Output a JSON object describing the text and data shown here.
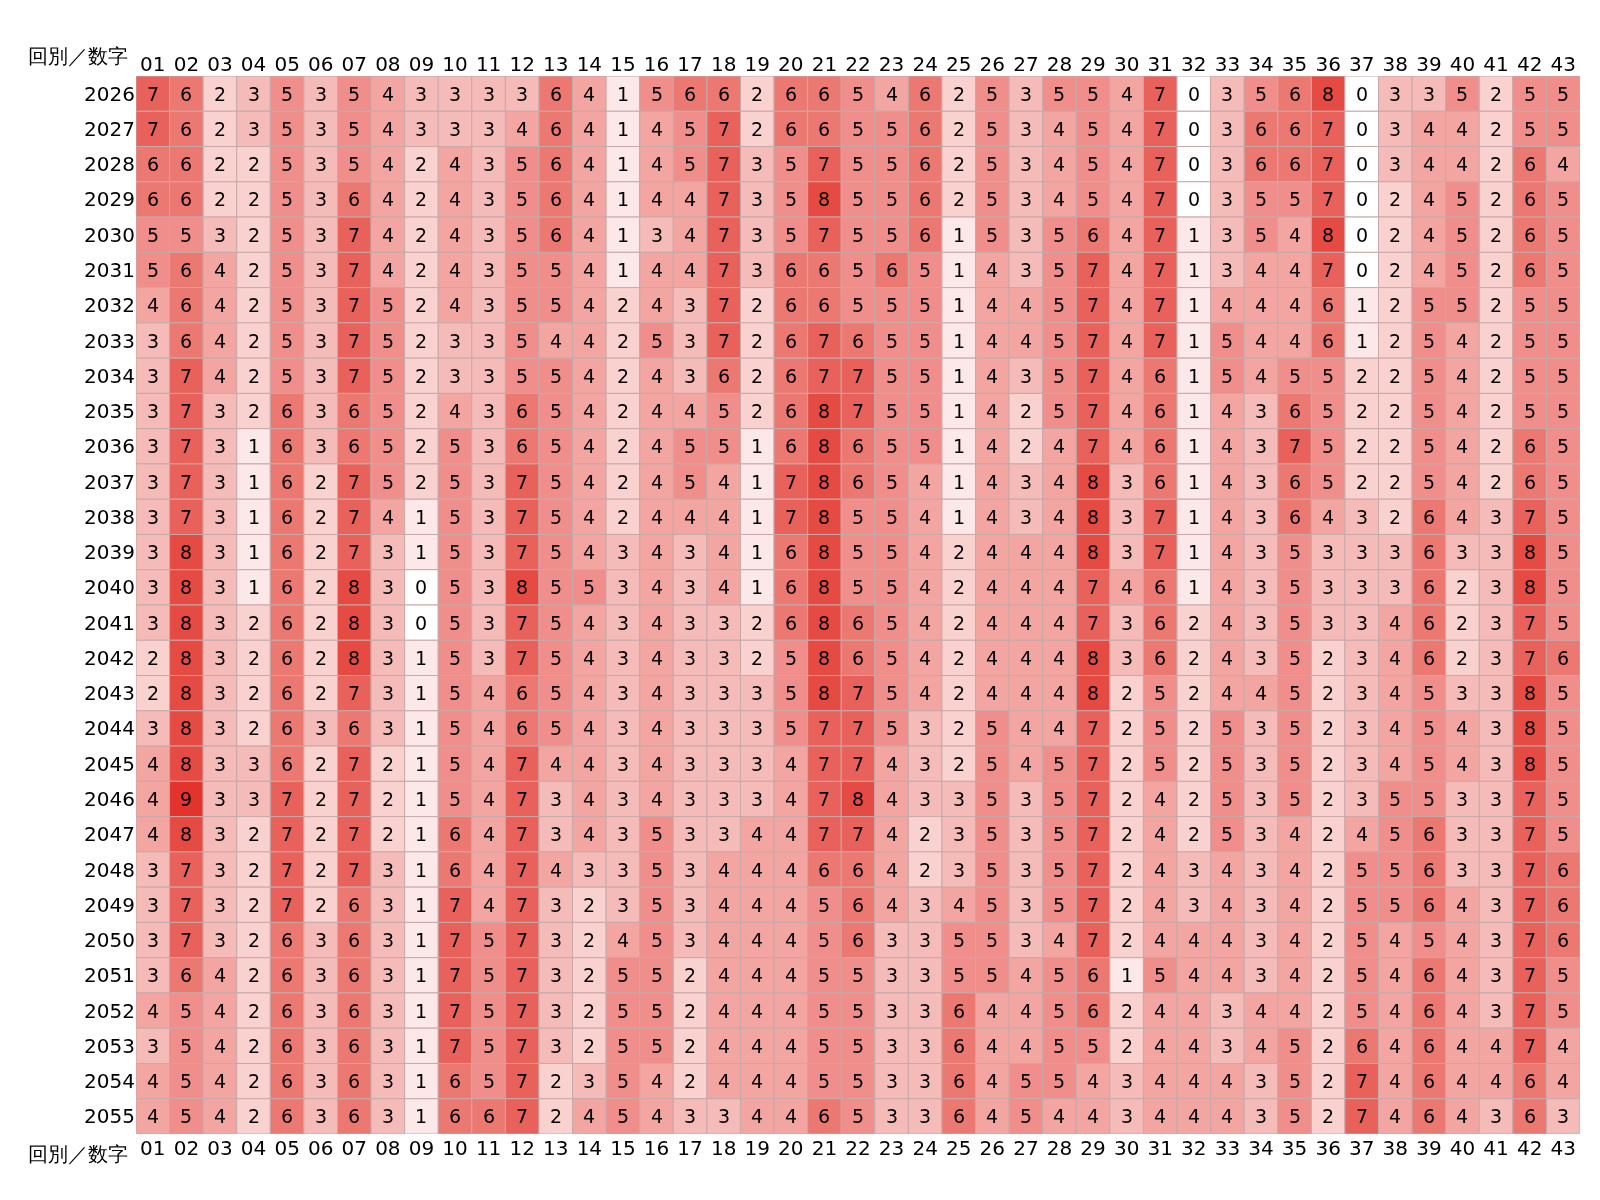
{
  "chart_data": {
    "type": "heatmap",
    "xlabel": "回別／数字",
    "data_labels": true,
    "categories": [
      "01",
      "02",
      "03",
      "04",
      "05",
      "06",
      "07",
      "08",
      "09",
      "10",
      "11",
      "12",
      "13",
      "14",
      "15",
      "16",
      "17",
      "18",
      "19",
      "20",
      "21",
      "22",
      "23",
      "24",
      "25",
      "26",
      "27",
      "28",
      "29",
      "30",
      "31",
      "32",
      "33",
      "34",
      "35",
      "36",
      "37",
      "38",
      "39",
      "40",
      "41",
      "42",
      "43"
    ],
    "y_categories": [
      "2026",
      "2027",
      "2028",
      "2029",
      "2030",
      "2031",
      "2032",
      "2033",
      "2034",
      "2035",
      "2036",
      "2037",
      "2038",
      "2039",
      "2040",
      "2041",
      "2042",
      "2043",
      "2044",
      "2045",
      "2046",
      "2047",
      "2048",
      "2049",
      "2050",
      "2051",
      "2052",
      "2053",
      "2054",
      "2055"
    ],
    "cells": [
      [
        7,
        6,
        2,
        3,
        5,
        3,
        5,
        4,
        3,
        3,
        3,
        3,
        6,
        4,
        1,
        5,
        6,
        6,
        2,
        6,
        6,
        5,
        4,
        6,
        2,
        5,
        3,
        5,
        5,
        4,
        7,
        0,
        3,
        5,
        6,
        8,
        0,
        3,
        3,
        5,
        2,
        5,
        5
      ],
      [
        7,
        6,
        2,
        3,
        5,
        3,
        5,
        4,
        3,
        3,
        3,
        4,
        6,
        4,
        1,
        4,
        5,
        7,
        2,
        6,
        6,
        5,
        5,
        6,
        2,
        5,
        3,
        4,
        5,
        4,
        7,
        0,
        3,
        6,
        6,
        7,
        0,
        3,
        4,
        4,
        2,
        5,
        5
      ],
      [
        6,
        6,
        2,
        2,
        5,
        3,
        5,
        4,
        2,
        4,
        3,
        5,
        6,
        4,
        1,
        4,
        5,
        7,
        3,
        5,
        7,
        5,
        5,
        6,
        2,
        5,
        3,
        4,
        5,
        4,
        7,
        0,
        3,
        6,
        6,
        7,
        0,
        3,
        4,
        4,
        2,
        6,
        4
      ],
      [
        6,
        6,
        2,
        2,
        5,
        3,
        6,
        4,
        2,
        4,
        3,
        5,
        6,
        4,
        1,
        4,
        4,
        7,
        3,
        5,
        8,
        5,
        5,
        6,
        2,
        5,
        3,
        4,
        5,
        4,
        7,
        0,
        3,
        5,
        5,
        7,
        0,
        2,
        4,
        5,
        2,
        6,
        5
      ],
      [
        5,
        5,
        3,
        2,
        5,
        3,
        7,
        4,
        2,
        4,
        3,
        5,
        6,
        4,
        1,
        3,
        4,
        7,
        3,
        5,
        7,
        5,
        5,
        6,
        1,
        5,
        3,
        5,
        6,
        4,
        7,
        1,
        3,
        5,
        4,
        8,
        0,
        2,
        4,
        5,
        2,
        6,
        5
      ],
      [
        5,
        6,
        4,
        2,
        5,
        3,
        7,
        4,
        2,
        4,
        3,
        5,
        5,
        4,
        1,
        4,
        4,
        7,
        3,
        6,
        6,
        5,
        6,
        5,
        1,
        4,
        3,
        5,
        7,
        4,
        7,
        1,
        3,
        4,
        4,
        7,
        0,
        2,
        4,
        5,
        2,
        6,
        5
      ],
      [
        4,
        6,
        4,
        2,
        5,
        3,
        7,
        5,
        2,
        4,
        3,
        5,
        5,
        4,
        2,
        4,
        3,
        7,
        2,
        6,
        6,
        5,
        5,
        5,
        1,
        4,
        4,
        5,
        7,
        4,
        7,
        1,
        4,
        4,
        4,
        6,
        1,
        2,
        5,
        5,
        2,
        5,
        5
      ],
      [
        3,
        6,
        4,
        2,
        5,
        3,
        7,
        5,
        2,
        3,
        3,
        5,
        4,
        4,
        2,
        5,
        3,
        7,
        2,
        6,
        7,
        6,
        5,
        5,
        1,
        4,
        4,
        5,
        7,
        4,
        7,
        1,
        5,
        4,
        4,
        6,
        1,
        2,
        5,
        4,
        2,
        5,
        5
      ],
      [
        3,
        7,
        4,
        2,
        5,
        3,
        7,
        5,
        2,
        3,
        3,
        5,
        5,
        4,
        2,
        4,
        3,
        6,
        2,
        6,
        7,
        7,
        5,
        5,
        1,
        4,
        3,
        5,
        7,
        4,
        6,
        1,
        5,
        4,
        5,
        5,
        2,
        2,
        5,
        4,
        2,
        5,
        5
      ],
      [
        3,
        7,
        3,
        2,
        6,
        3,
        6,
        5,
        2,
        4,
        3,
        6,
        5,
        4,
        2,
        4,
        4,
        5,
        2,
        6,
        8,
        7,
        5,
        5,
        1,
        4,
        2,
        5,
        7,
        4,
        6,
        1,
        4,
        3,
        6,
        5,
        2,
        2,
        5,
        4,
        2,
        5,
        5
      ],
      [
        3,
        7,
        3,
        1,
        6,
        3,
        6,
        5,
        2,
        5,
        3,
        6,
        5,
        4,
        2,
        4,
        5,
        5,
        1,
        6,
        8,
        6,
        5,
        5,
        1,
        4,
        2,
        4,
        7,
        4,
        6,
        1,
        4,
        3,
        7,
        5,
        2,
        2,
        5,
        4,
        2,
        6,
        5
      ],
      [
        3,
        7,
        3,
        1,
        6,
        2,
        7,
        5,
        2,
        5,
        3,
        7,
        5,
        4,
        2,
        4,
        5,
        4,
        1,
        7,
        8,
        6,
        5,
        4,
        1,
        4,
        3,
        4,
        8,
        3,
        6,
        1,
        4,
        3,
        6,
        5,
        2,
        2,
        5,
        4,
        2,
        6,
        5
      ],
      [
        3,
        7,
        3,
        1,
        6,
        2,
        7,
        4,
        1,
        5,
        3,
        7,
        5,
        4,
        2,
        4,
        4,
        4,
        1,
        7,
        8,
        5,
        5,
        4,
        1,
        4,
        3,
        4,
        8,
        3,
        7,
        1,
        4,
        3,
        6,
        4,
        3,
        2,
        6,
        4,
        3,
        7,
        5
      ],
      [
        3,
        8,
        3,
        1,
        6,
        2,
        7,
        3,
        1,
        5,
        3,
        7,
        5,
        4,
        3,
        4,
        3,
        4,
        1,
        6,
        8,
        5,
        5,
        4,
        2,
        4,
        4,
        4,
        8,
        3,
        7,
        1,
        4,
        3,
        5,
        3,
        3,
        3,
        6,
        3,
        3,
        8,
        5
      ],
      [
        3,
        8,
        3,
        1,
        6,
        2,
        8,
        3,
        0,
        5,
        3,
        8,
        5,
        5,
        3,
        4,
        3,
        4,
        1,
        6,
        8,
        5,
        5,
        4,
        2,
        4,
        4,
        4,
        7,
        4,
        6,
        1,
        4,
        3,
        5,
        3,
        3,
        3,
        6,
        2,
        3,
        8,
        5
      ],
      [
        3,
        8,
        3,
        2,
        6,
        2,
        8,
        3,
        0,
        5,
        3,
        7,
        5,
        4,
        3,
        4,
        3,
        3,
        2,
        6,
        8,
        6,
        5,
        4,
        2,
        4,
        4,
        4,
        7,
        3,
        6,
        2,
        4,
        3,
        5,
        3,
        3,
        4,
        6,
        2,
        3,
        7,
        5
      ],
      [
        2,
        8,
        3,
        2,
        6,
        2,
        8,
        3,
        1,
        5,
        3,
        7,
        5,
        4,
        3,
        4,
        3,
        3,
        2,
        5,
        8,
        6,
        5,
        4,
        2,
        4,
        4,
        4,
        8,
        3,
        6,
        2,
        4,
        3,
        5,
        2,
        3,
        4,
        6,
        2,
        3,
        7,
        6
      ],
      [
        2,
        8,
        3,
        2,
        6,
        2,
        7,
        3,
        1,
        5,
        4,
        6,
        5,
        4,
        3,
        4,
        3,
        3,
        3,
        5,
        8,
        7,
        5,
        4,
        2,
        4,
        4,
        4,
        8,
        2,
        5,
        2,
        4,
        4,
        5,
        2,
        3,
        4,
        5,
        3,
        3,
        8,
        5
      ],
      [
        3,
        8,
        3,
        2,
        6,
        3,
        6,
        3,
        1,
        5,
        4,
        6,
        5,
        4,
        3,
        4,
        3,
        3,
        3,
        5,
        7,
        7,
        5,
        3,
        2,
        5,
        4,
        4,
        7,
        2,
        5,
        2,
        5,
        3,
        5,
        2,
        3,
        4,
        5,
        4,
        3,
        8,
        5
      ],
      [
        4,
        8,
        3,
        3,
        6,
        2,
        7,
        2,
        1,
        5,
        4,
        7,
        4,
        4,
        3,
        4,
        3,
        3,
        3,
        4,
        7,
        7,
        4,
        3,
        2,
        5,
        4,
        5,
        7,
        2,
        5,
        2,
        5,
        3,
        5,
        2,
        3,
        4,
        5,
        4,
        3,
        8,
        5
      ],
      [
        4,
        9,
        3,
        3,
        7,
        2,
        7,
        2,
        1,
        5,
        4,
        7,
        3,
        4,
        3,
        4,
        3,
        3,
        3,
        4,
        7,
        8,
        4,
        3,
        3,
        5,
        3,
        5,
        7,
        2,
        4,
        2,
        5,
        3,
        5,
        2,
        3,
        5,
        5,
        3,
        3,
        7,
        5
      ],
      [
        4,
        8,
        3,
        2,
        7,
        2,
        7,
        2,
        1,
        6,
        4,
        7,
        3,
        4,
        3,
        5,
        3,
        3,
        4,
        4,
        7,
        7,
        4,
        2,
        3,
        5,
        3,
        5,
        7,
        2,
        4,
        2,
        5,
        3,
        4,
        2,
        4,
        5,
        6,
        3,
        3,
        7,
        5
      ],
      [
        3,
        7,
        3,
        2,
        7,
        2,
        7,
        3,
        1,
        6,
        4,
        7,
        4,
        3,
        3,
        5,
        3,
        4,
        4,
        4,
        6,
        6,
        4,
        2,
        3,
        5,
        3,
        5,
        7,
        2,
        4,
        3,
        4,
        3,
        4,
        2,
        5,
        5,
        6,
        3,
        3,
        7,
        6
      ],
      [
        3,
        7,
        3,
        2,
        7,
        2,
        6,
        3,
        1,
        7,
        4,
        7,
        3,
        2,
        3,
        5,
        3,
        4,
        4,
        4,
        5,
        6,
        4,
        3,
        4,
        5,
        3,
        5,
        7,
        2,
        4,
        3,
        4,
        3,
        4,
        2,
        5,
        5,
        6,
        4,
        3,
        7,
        6
      ],
      [
        3,
        7,
        3,
        2,
        6,
        3,
        6,
        3,
        1,
        7,
        5,
        7,
        3,
        2,
        4,
        5,
        3,
        4,
        4,
        4,
        5,
        6,
        3,
        3,
        5,
        5,
        3,
        4,
        7,
        2,
        4,
        4,
        4,
        3,
        4,
        2,
        5,
        4,
        5,
        4,
        3,
        7,
        6
      ],
      [
        3,
        6,
        4,
        2,
        6,
        3,
        6,
        3,
        1,
        7,
        5,
        7,
        3,
        2,
        5,
        5,
        2,
        4,
        4,
        4,
        5,
        5,
        3,
        3,
        5,
        5,
        4,
        5,
        6,
        1,
        5,
        4,
        4,
        3,
        4,
        2,
        5,
        4,
        6,
        4,
        3,
        7,
        5
      ],
      [
        4,
        5,
        4,
        2,
        6,
        3,
        6,
        3,
        1,
        7,
        5,
        7,
        3,
        2,
        5,
        5,
        2,
        4,
        4,
        4,
        5,
        5,
        3,
        3,
        6,
        4,
        4,
        5,
        6,
        2,
        4,
        4,
        3,
        4,
        4,
        2,
        5,
        4,
        6,
        4,
        3,
        7,
        5
      ],
      [
        3,
        5,
        4,
        2,
        6,
        3,
        6,
        3,
        1,
        7,
        5,
        7,
        3,
        2,
        5,
        5,
        2,
        4,
        4,
        4,
        5,
        5,
        3,
        3,
        6,
        4,
        4,
        5,
        5,
        2,
        4,
        4,
        3,
        4,
        5,
        2,
        6,
        4,
        6,
        4,
        4,
        7,
        4
      ],
      [
        4,
        5,
        4,
        2,
        6,
        3,
        6,
        3,
        1,
        6,
        5,
        7,
        2,
        3,
        5,
        4,
        2,
        4,
        4,
        4,
        5,
        5,
        3,
        3,
        6,
        4,
        5,
        5,
        4,
        3,
        4,
        4,
        4,
        3,
        5,
        2,
        7,
        4,
        6,
        4,
        4,
        6,
        4
      ],
      [
        4,
        5,
        4,
        2,
        6,
        3,
        6,
        3,
        1,
        6,
        6,
        7,
        2,
        4,
        5,
        4,
        3,
        3,
        4,
        4,
        6,
        5,
        3,
        3,
        6,
        4,
        5,
        4,
        4,
        3,
        4,
        4,
        4,
        3,
        5,
        2,
        7,
        4,
        6,
        4,
        3,
        6,
        3
      ]
    ]
  }
}
